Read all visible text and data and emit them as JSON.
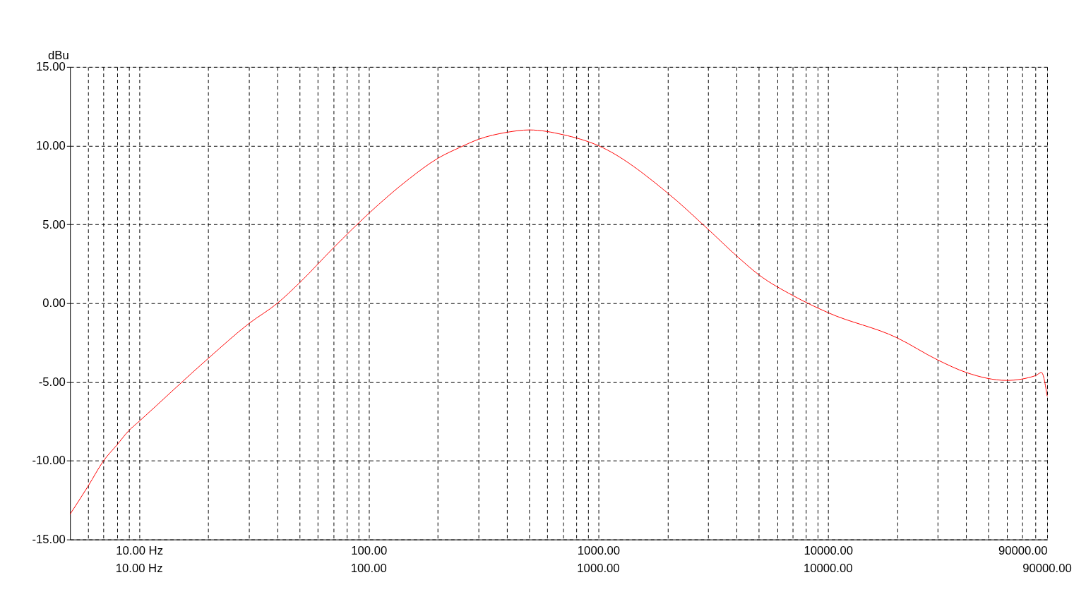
{
  "chart_data": {
    "type": "line",
    "ylabel": "dBu",
    "log": "x",
    "grid": true,
    "line_style": "dashed",
    "marker": "none",
    "x": [
      5,
      6,
      7,
      8,
      9,
      10,
      20,
      30,
      40,
      50,
      70,
      100,
      150,
      200,
      250,
      300,
      400,
      500,
      700,
      1000,
      2000,
      3000,
      4000,
      5000,
      7000,
      10000,
      20000,
      30000,
      40000,
      60000,
      80000,
      85000,
      90000
    ],
    "series": [
      {
        "color": "#ff0000",
        "line_style": "solid",
        "values": [
          -13.4,
          -11.6,
          -10.0,
          -9.0,
          -8.1,
          -7.5,
          -3.5,
          -1.3,
          0.0,
          1.3,
          3.5,
          5.7,
          7.9,
          9.2,
          9.9,
          10.4,
          10.85,
          11.0,
          10.7,
          10.0,
          7.0,
          4.7,
          3.0,
          1.8,
          0.5,
          -0.6,
          -2.2,
          -3.6,
          -4.4,
          -4.9,
          -4.6,
          -4.4,
          -5.9
        ]
      }
    ],
    "xlim": [
      5,
      90000
    ],
    "xticks": [
      {
        "value": 6,
        "label": null
      },
      {
        "value": 7,
        "label": null
      },
      {
        "value": 8,
        "label": null
      },
      {
        "value": 9,
        "label": null
      },
      {
        "value": 10,
        "label": "10.00 Hz"
      },
      {
        "value": 20,
        "label": null
      },
      {
        "value": 30,
        "label": null
      },
      {
        "value": 40,
        "label": null
      },
      {
        "value": 50,
        "label": null
      },
      {
        "value": 60,
        "label": null
      },
      {
        "value": 70,
        "label": null
      },
      {
        "value": 80,
        "label": null
      },
      {
        "value": 90,
        "label": null
      },
      {
        "value": 100,
        "label": "100.00"
      },
      {
        "value": 200,
        "label": null
      },
      {
        "value": 300,
        "label": null
      },
      {
        "value": 400,
        "label": null
      },
      {
        "value": 500,
        "label": null
      },
      {
        "value": 600,
        "label": null
      },
      {
        "value": 700,
        "label": null
      },
      {
        "value": 800,
        "label": null
      },
      {
        "value": 900,
        "label": null
      },
      {
        "value": 1000,
        "label": "1000.00"
      },
      {
        "value": 2000,
        "label": null
      },
      {
        "value": 3000,
        "label": null
      },
      {
        "value": 4000,
        "label": null
      },
      {
        "value": 5000,
        "label": null
      },
      {
        "value": 6000,
        "label": null
      },
      {
        "value": 7000,
        "label": null
      },
      {
        "value": 8000,
        "label": null
      },
      {
        "value": 9000,
        "label": null
      },
      {
        "value": 10000,
        "label": "10000.00"
      },
      {
        "value": 20000,
        "label": null
      },
      {
        "value": 30000,
        "label": null
      },
      {
        "value": 40000,
        "label": null
      },
      {
        "value": 50000,
        "label": null
      },
      {
        "value": 60000,
        "label": null
      },
      {
        "value": 70000,
        "label": null
      },
      {
        "value": 80000,
        "label": null
      },
      {
        "value": 90000,
        "label": "90000.00"
      }
    ],
    "annotations": [
      "10.00 Hz",
      "100.00",
      "1000.00",
      "10000.00",
      "90000.00"
    ],
    "ylim": [
      -15,
      15
    ],
    "yticks": [
      {
        "value": -15,
        "label": "-15.00"
      },
      {
        "value": -10,
        "label": "-10.00"
      },
      {
        "value": -5,
        "label": "-5.00"
      },
      {
        "value": 0,
        "label": "0.00"
      },
      {
        "value": 5,
        "label": "5.00"
      },
      {
        "value": 10,
        "label": "10.00"
      },
      {
        "value": 15,
        "label": "15.00"
      }
    ]
  }
}
